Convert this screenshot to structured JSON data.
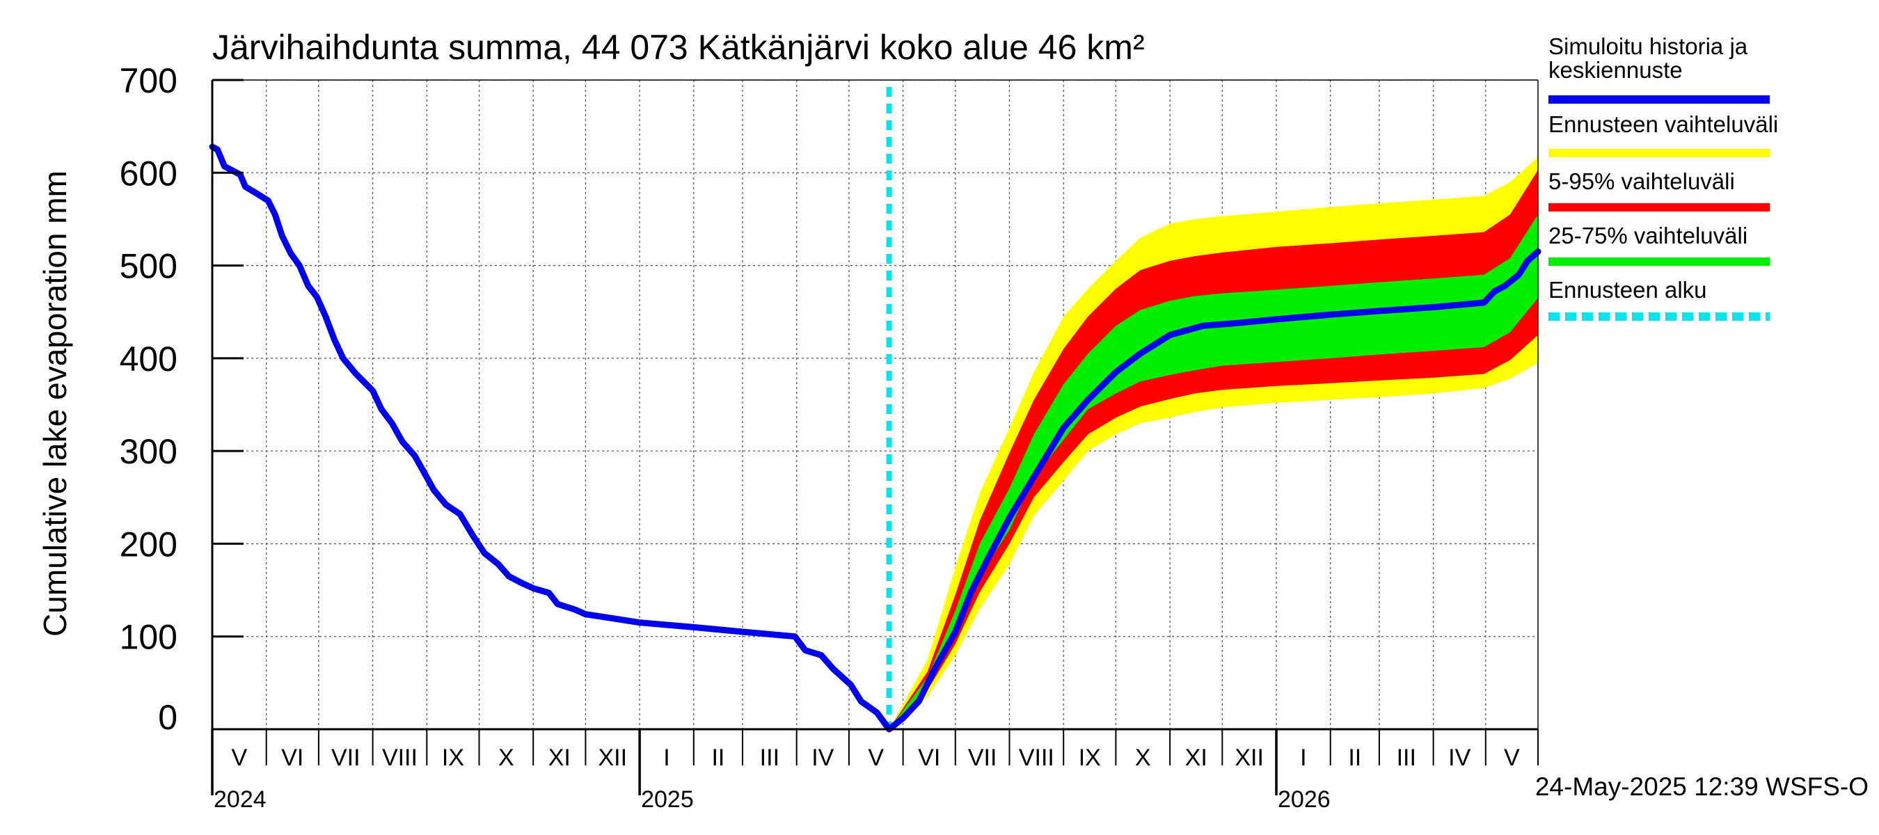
{
  "chart_data": {
    "type": "area",
    "title": "Järvihaihdunta summa, 44 073 Kätkänjärvi koko alue 46 km²",
    "ylabel": "Cumulative lake evaporation   mm",
    "xlabel": "",
    "ylim": [
      0,
      700
    ],
    "y_ticks": [
      0,
      100,
      200,
      300,
      400,
      500,
      600,
      700
    ],
    "x_range": [
      "2024-05-01",
      "2026-05-31"
    ],
    "grid": true,
    "legend_position": "right",
    "month_labels": [
      "V",
      "VI",
      "VII",
      "VIII",
      "IX",
      "X",
      "XI",
      "XII",
      "I",
      "II",
      "III",
      "IV",
      "V",
      "VI",
      "VII",
      "VIII",
      "IX",
      "X",
      "XI",
      "XII",
      "I",
      "II",
      "III",
      "IV",
      "V"
    ],
    "year_labels": [
      {
        "label": "2024",
        "date": "2024-05-01"
      },
      {
        "label": "2025",
        "date": "2025-01-01"
      },
      {
        "label": "2026",
        "date": "2026-01-01"
      }
    ],
    "forecast_start": "2025-05-24",
    "series": [
      {
        "name": "Simuloitu historia ja keskiennuste",
        "color": "#0000ee",
        "points": [
          [
            "2024-05-01",
            628
          ],
          [
            "2024-05-04",
            625
          ],
          [
            "2024-05-08",
            607
          ],
          [
            "2024-05-12",
            603
          ],
          [
            "2024-05-17",
            598
          ],
          [
            "2024-05-20",
            585
          ],
          [
            "2024-05-27",
            577
          ],
          [
            "2024-06-02",
            570
          ],
          [
            "2024-06-06",
            555
          ],
          [
            "2024-06-10",
            532
          ],
          [
            "2024-06-15",
            513
          ],
          [
            "2024-06-20",
            500
          ],
          [
            "2024-06-25",
            478
          ],
          [
            "2024-06-30",
            466
          ],
          [
            "2024-07-05",
            445
          ],
          [
            "2024-07-10",
            420
          ],
          [
            "2024-07-15",
            400
          ],
          [
            "2024-07-22",
            384
          ],
          [
            "2024-08-01",
            365
          ],
          [
            "2024-08-06",
            345
          ],
          [
            "2024-08-12",
            330
          ],
          [
            "2024-08-18",
            310
          ],
          [
            "2024-08-25",
            295
          ],
          [
            "2024-08-31",
            275
          ],
          [
            "2024-09-05",
            258
          ],
          [
            "2024-09-12",
            242
          ],
          [
            "2024-09-20",
            232
          ],
          [
            "2024-09-27",
            210
          ],
          [
            "2024-10-04",
            190
          ],
          [
            "2024-10-12",
            178
          ],
          [
            "2024-10-18",
            165
          ],
          [
            "2024-10-25",
            158
          ],
          [
            "2024-11-01",
            152
          ],
          [
            "2024-11-10",
            147
          ],
          [
            "2024-11-15",
            135
          ],
          [
            "2024-11-25",
            129
          ],
          [
            "2024-12-01",
            124
          ],
          [
            "2024-12-15",
            120
          ],
          [
            "2025-01-01",
            115
          ],
          [
            "2025-02-01",
            110
          ],
          [
            "2025-03-01",
            105
          ],
          [
            "2025-03-31",
            100
          ],
          [
            "2025-04-06",
            85
          ],
          [
            "2025-04-15",
            80
          ],
          [
            "2025-04-22",
            65
          ],
          [
            "2025-05-02",
            48
          ],
          [
            "2025-05-08",
            30
          ],
          [
            "2025-05-17",
            18
          ],
          [
            "2025-05-24",
            0
          ],
          [
            "2025-06-01",
            12
          ],
          [
            "2025-06-10",
            30
          ],
          [
            "2025-06-20",
            68
          ],
          [
            "2025-07-01",
            105
          ],
          [
            "2025-07-10",
            148
          ],
          [
            "2025-07-20",
            185
          ],
          [
            "2025-08-01",
            228
          ],
          [
            "2025-08-15",
            272
          ],
          [
            "2025-09-01",
            325
          ],
          [
            "2025-09-15",
            355
          ],
          [
            "2025-10-01",
            385
          ],
          [
            "2025-10-15",
            405
          ],
          [
            "2025-11-01",
            425
          ],
          [
            "2025-11-20",
            435
          ],
          [
            "2025-12-10",
            438
          ],
          [
            "2026-01-01",
            442
          ],
          [
            "2026-02-01",
            447
          ],
          [
            "2026-03-01",
            451
          ],
          [
            "2026-04-01",
            455
          ],
          [
            "2026-04-30",
            460
          ],
          [
            "2026-05-06",
            472
          ],
          [
            "2026-05-12",
            478
          ],
          [
            "2026-05-20",
            490
          ],
          [
            "2026-05-25",
            505
          ],
          [
            "2026-05-31",
            515
          ]
        ]
      }
    ],
    "bands": [
      {
        "name": "Ennusteen vaihteluväli",
        "color": "#ffff00",
        "x": [
          "2025-05-24",
          "2025-06-15",
          "2025-07-01",
          "2025-07-15",
          "2025-08-01",
          "2025-08-15",
          "2025-09-01",
          "2025-09-15",
          "2025-10-01",
          "2025-10-15",
          "2025-11-01",
          "2025-11-15",
          "2025-12-01",
          "2026-01-01",
          "2026-02-01",
          "2026-03-01",
          "2026-04-01",
          "2026-04-30",
          "2026-05-15",
          "2026-05-31"
        ],
        "upper": [
          0,
          75,
          175,
          255,
          325,
          385,
          445,
          475,
          505,
          530,
          545,
          550,
          553,
          558,
          563,
          567,
          571,
          575,
          590,
          617
        ],
        "lower": [
          0,
          35,
          80,
          130,
          178,
          230,
          268,
          300,
          318,
          330,
          336,
          342,
          347,
          352,
          355,
          358,
          362,
          368,
          378,
          395
        ]
      },
      {
        "name": "5-95% vaihteluväli",
        "color": "#ff0000",
        "x": [
          "2025-05-24",
          "2025-06-15",
          "2025-07-01",
          "2025-07-15",
          "2025-08-01",
          "2025-08-15",
          "2025-09-01",
          "2025-09-15",
          "2025-10-01",
          "2025-10-15",
          "2025-11-01",
          "2025-11-15",
          "2025-12-01",
          "2026-01-01",
          "2026-02-01",
          "2026-03-01",
          "2026-04-01",
          "2026-04-30",
          "2026-05-15",
          "2026-05-31"
        ],
        "upper": [
          0,
          62,
          145,
          225,
          298,
          355,
          410,
          445,
          475,
          495,
          505,
          510,
          514,
          520,
          524,
          528,
          532,
          536,
          555,
          603
        ],
        "lower": [
          0,
          42,
          92,
          148,
          200,
          250,
          288,
          318,
          336,
          348,
          356,
          362,
          366,
          370,
          373,
          376,
          379,
          383,
          398,
          425
        ]
      },
      {
        "name": "25-75% vaihteluväli",
        "color": "#00ee00",
        "x": [
          "2025-05-24",
          "2025-06-15",
          "2025-07-01",
          "2025-07-15",
          "2025-08-01",
          "2025-08-15",
          "2025-09-01",
          "2025-09-15",
          "2025-10-01",
          "2025-10-15",
          "2025-11-01",
          "2025-11-15",
          "2025-12-01",
          "2026-01-01",
          "2026-02-01",
          "2026-03-01",
          "2026-04-01",
          "2026-04-30",
          "2026-05-15",
          "2026-05-31"
        ],
        "upper": [
          0,
          56,
          128,
          200,
          260,
          318,
          372,
          405,
          435,
          452,
          462,
          467,
          470,
          474,
          478,
          482,
          486,
          490,
          508,
          555
        ],
        "lower": [
          0,
          46,
          102,
          165,
          215,
          272,
          312,
          345,
          362,
          375,
          382,
          387,
          392,
          396,
          400,
          404,
          408,
          412,
          428,
          465
        ]
      }
    ],
    "legend": [
      {
        "label": "Simuloitu historia ja",
        "label2": "keskiennuste",
        "color": "#0000ee",
        "style": "solid"
      },
      {
        "label": "Ennusteen vaihteluväli",
        "label2": "",
        "color": "#ffff00",
        "style": "solid"
      },
      {
        "label": "5-95% vaihteluväli",
        "label2": "",
        "color": "#ff0000",
        "style": "solid"
      },
      {
        "label": "25-75% vaihteluväli",
        "label2": "",
        "color": "#00ee00",
        "style": "solid"
      },
      {
        "label": "Ennusteen alku",
        "label2": "",
        "color": "#00e5ee",
        "style": "dashed"
      }
    ],
    "footer": "24-May-2025 12:39 WSFS-O"
  }
}
